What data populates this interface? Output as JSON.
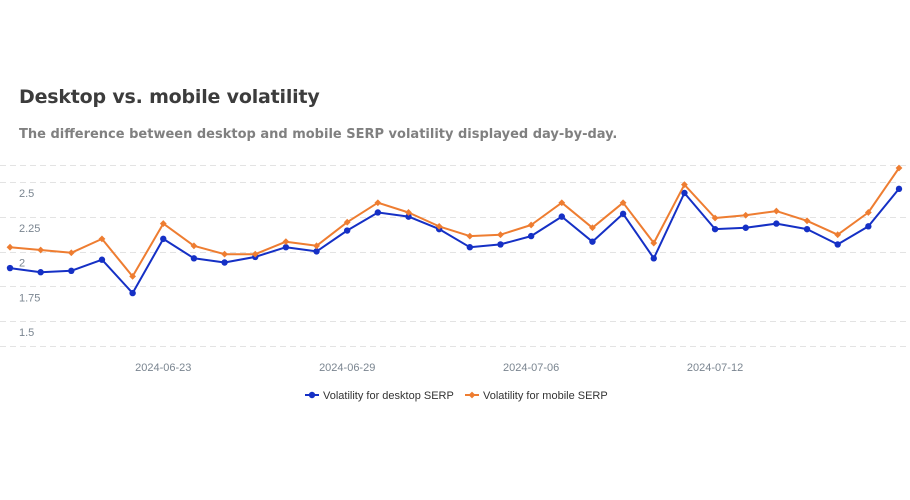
{
  "header": {
    "title": "Desktop vs. mobile volatility",
    "subtitle": "The difference between desktop and mobile SERP volatility displayed day-by-day."
  },
  "colors": {
    "desktop": "#1530c5",
    "mobile": "#ee7d31",
    "grid": "#e3e3e3",
    "tick": "#7a8590"
  },
  "chart_data": {
    "type": "line",
    "title": "Desktop vs. mobile volatility",
    "subtitle": "The difference between desktop and mobile SERP volatility displayed day-by-day.",
    "xlabel": "",
    "ylabel": "",
    "ylim": [
      1.4,
      2.65
    ],
    "yticks": [
      1.5,
      1.75,
      2,
      2.25,
      2.5
    ],
    "ytick_labels": [
      "1.5",
      "1.75",
      "2",
      "2.25",
      "2.5"
    ],
    "grid": true,
    "legend_position": "bottom-center",
    "x": [
      "2024-06-18",
      "2024-06-19",
      "2024-06-20",
      "2024-06-21",
      "2024-06-22",
      "2024-06-23",
      "2024-06-24",
      "2024-06-25",
      "2024-06-26",
      "2024-06-27",
      "2024-06-28",
      "2024-06-29",
      "2024-06-30",
      "2024-07-01",
      "2024-07-02",
      "2024-07-03",
      "2024-07-04",
      "2024-07-05",
      "2024-07-06",
      "2024-07-07",
      "2024-07-08",
      "2024-07-09",
      "2024-07-10",
      "2024-07-11",
      "2024-07-12",
      "2024-07-13",
      "2024-07-14",
      "2024-07-15",
      "2024-07-16",
      "2024-07-17"
    ],
    "x_tick_indices": [
      5,
      11,
      17,
      23
    ],
    "x_tick_labels": [
      "2024-06-23",
      "2024-06-29",
      "2024-07-06",
      "2024-07-12"
    ],
    "series": [
      {
        "name": "Volatility for desktop SERP",
        "color": "#1530c5",
        "marker": "circle",
        "values": [
          1.96,
          1.93,
          1.94,
          2.02,
          1.78,
          2.17,
          2.03,
          2.0,
          2.04,
          2.11,
          2.08,
          2.23,
          2.36,
          2.33,
          2.24,
          2.11,
          2.13,
          2.19,
          2.33,
          2.15,
          2.35,
          2.03,
          2.5,
          2.24,
          2.25,
          2.28,
          2.24,
          2.13,
          2.26,
          2.53
        ]
      },
      {
        "name": "Volatility for mobile SERP",
        "color": "#ee7d31",
        "marker": "diamond",
        "values": [
          2.11,
          2.09,
          2.07,
          2.17,
          1.9,
          2.28,
          2.12,
          2.06,
          2.06,
          2.15,
          2.12,
          2.29,
          2.43,
          2.36,
          2.26,
          2.19,
          2.2,
          2.27,
          2.43,
          2.25,
          2.43,
          2.14,
          2.56,
          2.32,
          2.34,
          2.37,
          2.3,
          2.2,
          2.36,
          2.68
        ]
      }
    ]
  }
}
